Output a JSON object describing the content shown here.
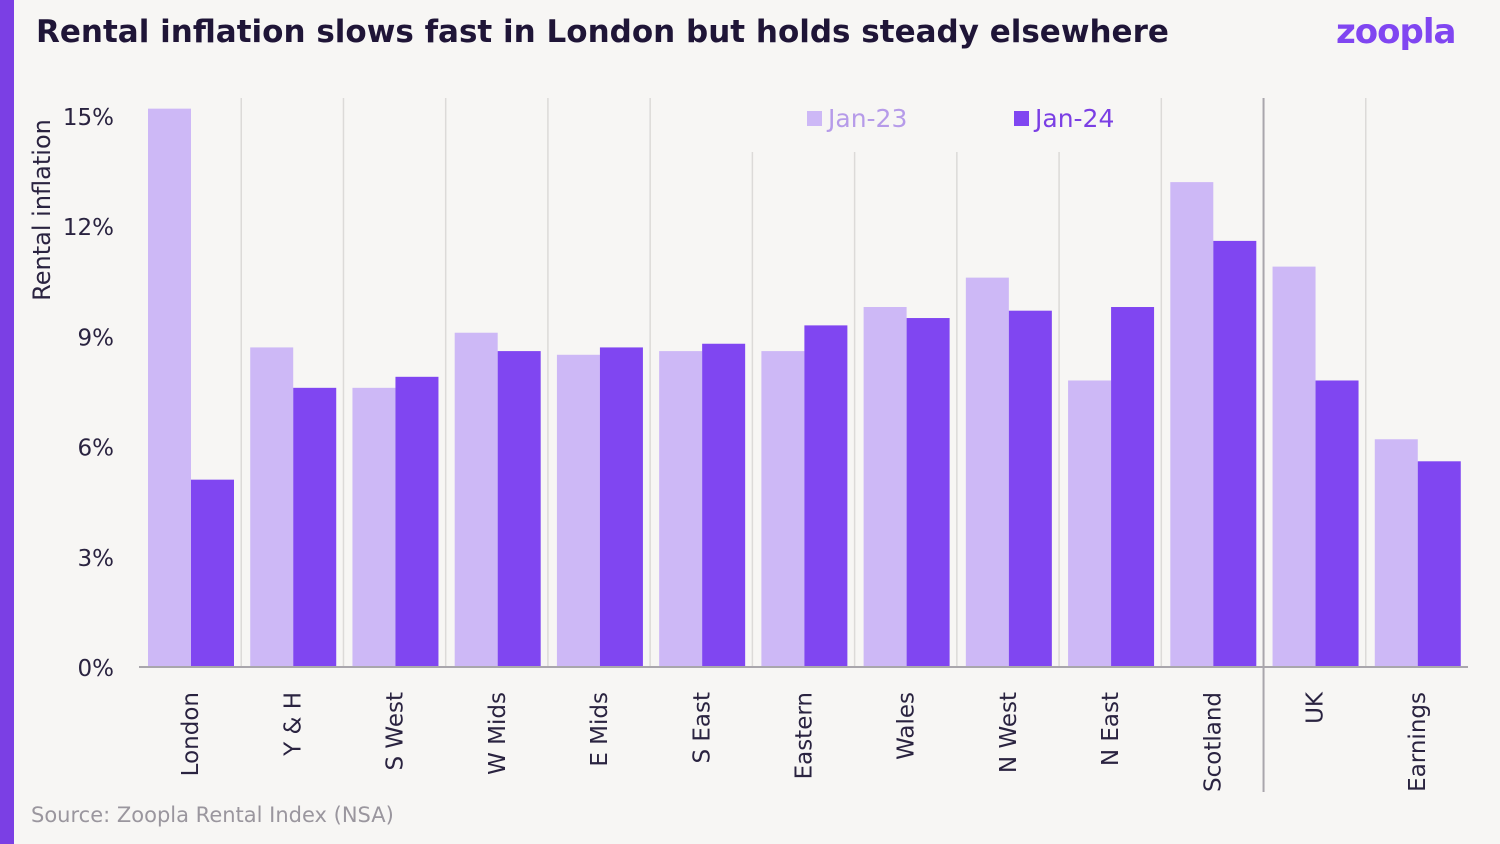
{
  "header": {
    "title": "Rental inflation slows fast in London but holds steady elsewhere",
    "logo": "zoopla"
  },
  "footer": {
    "source": "Source: Zoopla Rental Index (NSA)"
  },
  "colors": {
    "jan23": "#cdb8f6",
    "jan24": "#8046f1",
    "accent": "#7b3fe4",
    "grid": "#dcdad8"
  },
  "chart_data": {
    "type": "bar",
    "title": "Rental inflation slows fast in London but holds steady elsewhere",
    "xlabel": "",
    "ylabel": "Rental inflation",
    "ylim": [
      0,
      15
    ],
    "yticks": [
      0,
      3,
      6,
      9,
      12,
      15
    ],
    "ytick_labels": [
      "0%",
      "3%",
      "6%",
      "9%",
      "12%",
      "15%"
    ],
    "categories": [
      "London",
      "Y & H",
      "S West",
      "W Mids",
      "E Mids",
      "S East",
      "Eastern",
      "Wales",
      "N West",
      "N East",
      "Scotland",
      "UK",
      "Earnings"
    ],
    "series": [
      {
        "name": "Jan-23",
        "values": [
          15.2,
          8.7,
          7.6,
          9.1,
          8.5,
          8.6,
          8.6,
          9.8,
          10.6,
          7.8,
          13.2,
          10.9,
          6.2
        ]
      },
      {
        "name": "Jan-24",
        "values": [
          5.1,
          7.6,
          7.9,
          8.6,
          8.7,
          8.8,
          9.3,
          9.5,
          9.7,
          9.8,
          11.6,
          7.8,
          5.6
        ]
      }
    ],
    "legend": [
      "Jan-23",
      "Jan-24"
    ],
    "legend_position": "top-center",
    "separator_before": "UK"
  }
}
